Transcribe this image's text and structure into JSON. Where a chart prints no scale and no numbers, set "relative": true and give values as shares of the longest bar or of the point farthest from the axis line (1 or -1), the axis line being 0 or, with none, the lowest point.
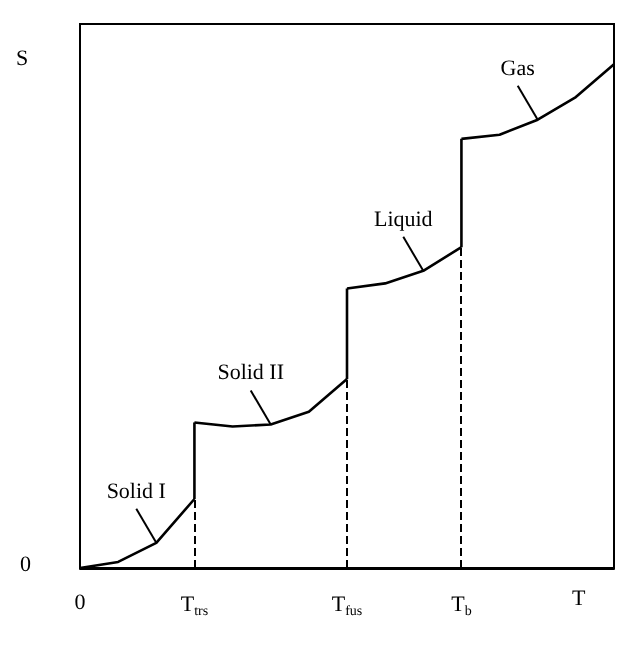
{
  "chart_data": {
    "type": "line",
    "relative": true,
    "xlabel": "T",
    "ylabel": "S",
    "categories": [
      "0",
      null,
      null,
      "T$_{trs}$",
      null,
      null,
      null,
      "T$_{fus}$",
      null,
      null,
      "T$_{b}$",
      null,
      null,
      null,
      null
    ],
    "series": [
      {
        "name": "Solid I",
        "color": "#000000",
        "values": [
          0,
          0.012,
          0.05,
          0.137,
          null,
          null,
          null,
          null,
          null,
          null,
          null,
          null,
          null,
          null,
          null
        ]
      },
      {
        "color": "#000000",
        "x": [
          "T$_{trs}$",
          "T$_{trs}$"
        ],
        "values": [
          0.137,
          0.289
        ]
      },
      {
        "name": "Solid II",
        "color": "#000000",
        "values": [
          null,
          null,
          null,
          0.289,
          0.281,
          0.285,
          0.31,
          0.375,
          null,
          null,
          null,
          null,
          null,
          null,
          null
        ]
      },
      {
        "color": "#000000",
        "x": [
          "T$_{fus}$",
          "T$_{fus}$"
        ],
        "values": [
          0.375,
          0.555
        ]
      },
      {
        "name": "Liquid",
        "color": "#000000",
        "values": [
          null,
          null,
          null,
          null,
          null,
          null,
          null,
          0.555,
          0.565,
          0.59,
          0.637,
          null,
          null,
          null,
          null
        ]
      },
      {
        "color": "#000000",
        "x": [
          "T$_{b}$",
          "T$_{b}$"
        ],
        "values": [
          0.637,
          0.852
        ]
      },
      {
        "name": "Gas",
        "color": "#000000",
        "values": [
          null,
          null,
          null,
          null,
          null,
          null,
          null,
          null,
          null,
          null,
          0.852,
          0.86,
          0.89,
          0.935,
          1
        ]
      }
    ],
    "marker": "none",
    "line_style": "solid",
    "grid": false,
    "ref_lines": [
      {
        "axis": "x",
        "value": "T$_{trs}$",
        "line_style": "dashed",
        "color": "#000000"
      },
      {
        "axis": "x",
        "value": "T$_{fus}$",
        "line_style": "dashed",
        "color": "#000000"
      },
      {
        "axis": "x",
        "value": "T$_{b}$",
        "line_style": "dashed",
        "color": "#000000"
      }
    ],
    "annotations": [
      "0"
    ]
  }
}
